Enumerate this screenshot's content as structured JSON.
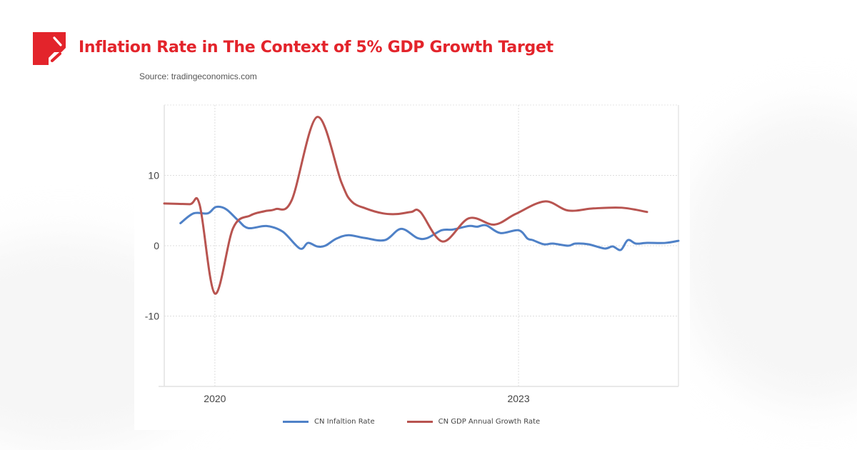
{
  "header": {
    "title": "Inflation Rate in The Context of 5% GDP Growth Target",
    "brand_color": "#e3242b",
    "source": "Source: tradingeconomics.com"
  },
  "chart_data": {
    "type": "line",
    "title": "Inflation Rate in The Context of 5% GDP Growth Target",
    "xlabel": "",
    "ylabel": "",
    "xlim": [
      2019.5,
      2024.58
    ],
    "ylim": [
      -20,
      20
    ],
    "y_ticks": [
      10,
      0,
      -10
    ],
    "y_tick_labels": [
      "10",
      "0",
      "-10"
    ],
    "x_ticks": [
      2020,
      2023
    ],
    "x_tick_labels": [
      "2020",
      "2023"
    ],
    "grid": true,
    "legend_position": "bottom",
    "series": [
      {
        "name": "CN Infaltion Rate",
        "color": "#4f81c7",
        "x": [
          2019.66,
          2019.79,
          2019.93,
          2020.01,
          2020.11,
          2020.23,
          2020.33,
          2020.51,
          2020.67,
          2020.84,
          2020.92,
          2021.01,
          2021.09,
          2021.2,
          2021.32,
          2021.48,
          2021.68,
          2021.84,
          2022.0,
          2022.1,
          2022.24,
          2022.35,
          2022.51,
          2022.59,
          2022.68,
          2022.82,
          2023.0,
          2023.09,
          2023.14,
          2023.25,
          2023.34,
          2023.49,
          2023.56,
          2023.69,
          2023.85,
          2023.93,
          2024.01,
          2024.08,
          2024.16,
          2024.27,
          2024.45,
          2024.58
        ],
        "values": [
          3.2,
          4.6,
          4.6,
          5.5,
          5.2,
          3.6,
          2.5,
          2.8,
          2.0,
          -0.4,
          0.4,
          -0.1,
          0.0,
          1.0,
          1.5,
          1.1,
          0.8,
          2.4,
          1.1,
          1.1,
          2.2,
          2.3,
          2.8,
          2.7,
          2.9,
          1.8,
          2.2,
          1.0,
          0.8,
          0.2,
          0.3,
          0.0,
          0.3,
          0.2,
          -0.4,
          -0.1,
          -0.6,
          0.8,
          0.3,
          0.4,
          0.4,
          0.7
        ]
      },
      {
        "name": "CN GDP Annual Growth Rate",
        "color": "#b85450",
        "x": [
          2019.5,
          2019.75,
          2019.85,
          2020.0,
          2020.18,
          2020.35,
          2020.49,
          2020.6,
          2020.76,
          2021.01,
          2021.25,
          2021.35,
          2021.49,
          2021.66,
          2021.8,
          2021.94,
          2022.03,
          2022.25,
          2022.51,
          2022.76,
          2022.97,
          2023.26,
          2023.49,
          2023.74,
          2024.02,
          2024.27
        ],
        "values": [
          6.0,
          5.9,
          5.8,
          -6.8,
          2.5,
          4.3,
          4.9,
          5.2,
          6.5,
          18.3,
          9.0,
          6.3,
          5.3,
          4.6,
          4.5,
          4.8,
          4.8,
          0.6,
          3.9,
          3.0,
          4.5,
          6.3,
          5.0,
          5.3,
          5.4,
          4.8
        ]
      }
    ]
  },
  "legend": {
    "items": [
      {
        "label": "CN Infaltion Rate",
        "color": "#4f81c7"
      },
      {
        "label": "CN GDP Annual Growth Rate",
        "color": "#b85450"
      }
    ]
  }
}
